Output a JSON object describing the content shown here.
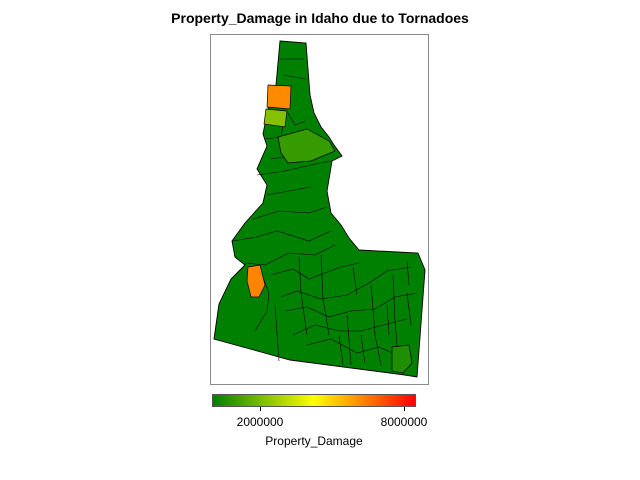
{
  "title": "Property_Damage in Idaho due to Tornadoes",
  "legend": {
    "title": "Property_Damage",
    "min": 0,
    "max": 8500000,
    "ticks": [
      {
        "value": 2000000,
        "label": "2000000"
      },
      {
        "value": 8000000,
        "label": "8000000"
      }
    ],
    "colors": [
      "#008000",
      "#ffff00",
      "#ff0000"
    ]
  },
  "colors": {
    "low": "#008000",
    "border": "#000000",
    "frame": "#8a8a8a"
  },
  "chart_data": {
    "type": "choropleth",
    "title": "Property_Damage in Idaho due to Tornadoes",
    "color_scale": {
      "min": 0,
      "max": 8500000,
      "stops": [
        "#008000",
        "#ffff00",
        "#ff0000"
      ]
    },
    "highlighted_regions": [
      {
        "id": "latah",
        "value": 6200000
      },
      {
        "id": "nez-perce",
        "value": 2200000
      },
      {
        "id": "clearwater",
        "value": 900000
      },
      {
        "id": "washington",
        "value": 6300000
      },
      {
        "id": "franklin",
        "value": 500000
      }
    ],
    "other_regions_value": 0
  }
}
